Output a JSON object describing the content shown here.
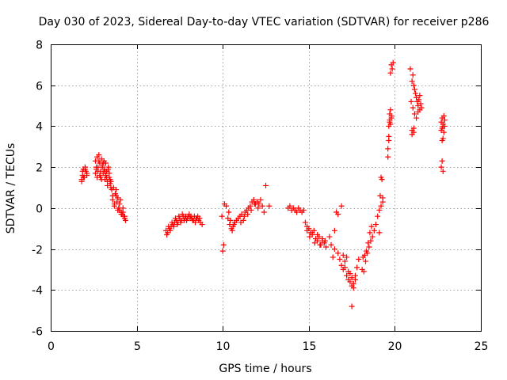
{
  "chart_data": {
    "type": "scatter",
    "title": "Day 030 of 2023, Sidereal Day-to-day VTEC variation (SDTVAR) for receiver p286",
    "xlabel": "GPS time / hours",
    "ylabel": "SDTVAR / TECUs",
    "xlim": [
      0,
      25
    ],
    "ylim": [
      -6,
      8
    ],
    "xticks": [
      0,
      5,
      10,
      15,
      20,
      25
    ],
    "yticks": [
      -6,
      -4,
      -2,
      0,
      2,
      4,
      6,
      8
    ],
    "grid": true,
    "marker": "+",
    "color": "#ff0000",
    "series": [
      {
        "name": "SDTVAR",
        "x": [
          1.8,
          1.85,
          1.9,
          1.95,
          2.0,
          2.05,
          2.1,
          1.8,
          1.85,
          1.9,
          2.0,
          2.1,
          2.6,
          2.65,
          2.7,
          2.75,
          2.8,
          2.85,
          2.9,
          2.95,
          3.0,
          3.05,
          3.1,
          3.15,
          3.2,
          3.25,
          3.3,
          3.35,
          3.4,
          3.45,
          3.5,
          2.6,
          2.7,
          2.8,
          2.9,
          3.0,
          3.1,
          3.2,
          3.3,
          3.4,
          3.5,
          2.65,
          2.75,
          2.85,
          2.95,
          3.05,
          3.15,
          3.25,
          3.35,
          3.45,
          3.55,
          3.6,
          3.65,
          3.7,
          3.75,
          3.8,
          3.85,
          3.9,
          3.95,
          4.0,
          4.05,
          4.1,
          4.15,
          4.2,
          4.25,
          4.3,
          4.35,
          3.6,
          3.7,
          3.8,
          3.9,
          4.0,
          4.1,
          4.2,
          4.3,
          6.7,
          6.8,
          6.9,
          7.0,
          7.1,
          7.2,
          7.3,
          7.4,
          7.5,
          7.6,
          7.7,
          7.8,
          7.9,
          8.0,
          8.1,
          8.2,
          8.3,
          8.4,
          8.5,
          8.6,
          8.7,
          8.8,
          6.75,
          6.85,
          6.95,
          7.05,
          7.15,
          7.25,
          7.35,
          7.45,
          7.55,
          7.65,
          7.75,
          7.85,
          7.95,
          8.05,
          8.15,
          8.25,
          8.35,
          8.45,
          8.55,
          8.65,
          9.95,
          10.0,
          10.05,
          10.1,
          10.2,
          10.3,
          10.4,
          10.5,
          10.6,
          10.7,
          10.8,
          10.9,
          11.0,
          11.1,
          11.2,
          11.3,
          11.4,
          11.5,
          11.6,
          11.7,
          11.8,
          11.9,
          12.0,
          12.1,
          12.2,
          12.3,
          12.4,
          12.5,
          12.7,
          10.35,
          10.45,
          10.55,
          10.65,
          11.05,
          11.25,
          11.45,
          11.65,
          11.85,
          12.05,
          13.8,
          13.9,
          14.0,
          14.1,
          14.2,
          14.3,
          14.4,
          14.5,
          14.6,
          14.7,
          14.8,
          14.9,
          15.0,
          15.1,
          15.2,
          15.3,
          15.4,
          15.5,
          15.6,
          15.7,
          15.8,
          15.9,
          16.0,
          14.9,
          15.05,
          15.2,
          15.35,
          15.5,
          15.65,
          15.8,
          15.95,
          16.2,
          16.3,
          16.4,
          16.5,
          16.6,
          16.7,
          16.8,
          16.9,
          17.0,
          17.1,
          17.2,
          17.3,
          17.4,
          17.5,
          17.6,
          17.7,
          17.8,
          17.9,
          16.5,
          16.7,
          16.9,
          17.0,
          17.1,
          17.2,
          17.3,
          17.4,
          17.5,
          17.6,
          17.7,
          17.5,
          18.1,
          18.2,
          18.3,
          18.4,
          18.5,
          18.6,
          18.7,
          18.8,
          18.9,
          19.0,
          19.1,
          19.2,
          19.3,
          18.15,
          18.25,
          18.35,
          18.45,
          18.55,
          18.65,
          19.1,
          19.15,
          19.2,
          19.25,
          19.3,
          19.6,
          19.65,
          19.7,
          19.75,
          19.8,
          19.85,
          19.9,
          19.6,
          19.65,
          19.7,
          19.75,
          19.8,
          19.65,
          19.7,
          19.75,
          19.8,
          20.9,
          21.0,
          21.05,
          21.1,
          21.15,
          21.2,
          21.25,
          21.3,
          21.35,
          21.4,
          21.45,
          21.5,
          21.55,
          20.95,
          21.05,
          21.15,
          21.25,
          21.35,
          21.45,
          21.0,
          21.1,
          21.0,
          21.1,
          22.7,
          22.75,
          22.8,
          22.85,
          22.9,
          22.7,
          22.75,
          22.8,
          22.85,
          22.9,
          22.75,
          22.8,
          22.7,
          22.75,
          22.8
        ],
        "y": [
          1.4,
          1.6,
          1.9,
          1.5,
          2.0,
          1.8,
          1.7,
          1.3,
          1.8,
          1.5,
          1.9,
          1.6,
          2.3,
          2.0,
          2.5,
          1.8,
          2.6,
          2.2,
          1.5,
          2.4,
          2.0,
          1.7,
          2.3,
          1.4,
          2.2,
          1.8,
          1.1,
          2.0,
          1.5,
          1.2,
          1.0,
          1.7,
          1.5,
          2.3,
          1.8,
          2.1,
          1.9,
          1.6,
          1.3,
          1.7,
          1.3,
          1.9,
          2.0,
          1.6,
          1.4,
          2.2,
          1.8,
          1.5,
          1.9,
          1.4,
          0.9,
          0.6,
          1.0,
          0.2,
          0.7,
          0.9,
          0.3,
          0.5,
          0.0,
          -0.1,
          0.4,
          -0.2,
          -0.3,
          0.0,
          -0.4,
          -0.5,
          -0.6,
          0.4,
          0.1,
          0.6,
          -0.1,
          0.2,
          -0.3,
          -0.2,
          -0.4,
          -1.1,
          -1.2,
          -1.0,
          -0.9,
          -0.8,
          -0.7,
          -0.6,
          -0.7,
          -0.5,
          -0.6,
          -0.4,
          -0.5,
          -0.6,
          -0.4,
          -0.5,
          -0.5,
          -0.6,
          -0.7,
          -0.5,
          -0.6,
          -0.7,
          -0.8,
          -1.3,
          -0.9,
          -1.1,
          -0.7,
          -0.9,
          -0.5,
          -0.8,
          -0.4,
          -0.7,
          -0.3,
          -0.6,
          -0.4,
          -0.5,
          -0.3,
          -0.4,
          -0.6,
          -0.4,
          -0.5,
          -0.4,
          -0.5,
          -0.4,
          -2.1,
          -1.8,
          0.2,
          0.1,
          -0.5,
          -0.8,
          -1.0,
          -0.9,
          -0.7,
          -0.6,
          -0.5,
          -0.4,
          -0.3,
          -0.6,
          -0.2,
          -0.1,
          0.0,
          0.1,
          0.3,
          0.4,
          0.2,
          0.3,
          0.2,
          0.4,
          0.1,
          -0.2,
          1.1,
          0.1,
          -0.2,
          -0.6,
          -1.1,
          -0.8,
          -0.7,
          -0.4,
          -0.3,
          -0.1,
          0.2,
          0.0,
          0.0,
          0.1,
          -0.1,
          0.0,
          -0.1,
          -0.2,
          0.0,
          -0.1,
          -0.2,
          -0.1,
          -0.7,
          -0.9,
          -1.0,
          -1.2,
          -1.3,
          -1.1,
          -1.5,
          -1.6,
          -1.4,
          -1.8,
          -1.6,
          -1.7,
          -1.9,
          -1.1,
          -1.4,
          -1.2,
          -1.7,
          -1.3,
          -1.8,
          -1.5,
          -1.6,
          -1.4,
          -1.8,
          -2.4,
          -1.1,
          -0.2,
          -2.2,
          -2.5,
          -2.8,
          -3.0,
          -2.9,
          -3.3,
          -3.5,
          -3.6,
          -3.8,
          -3.9,
          -3.3,
          -2.9,
          -2.5,
          -2.0,
          -0.3,
          0.1,
          -2.3,
          -2.6,
          -2.4,
          -3.1,
          -3.2,
          -3.4,
          -3.7,
          -3.5,
          -4.8,
          -3.0,
          -3.1,
          -2.6,
          -2.2,
          -1.9,
          -1.6,
          -1.4,
          -1.1,
          -0.8,
          -0.4,
          -0.1,
          0.1,
          0.5,
          -2.4,
          -2.3,
          -2.1,
          -1.7,
          -1.2,
          -0.9,
          -1.2,
          0.6,
          1.5,
          1.4,
          0.3,
          2.5,
          3.5,
          4.2,
          4.8,
          4.4,
          6.8,
          7.1,
          2.9,
          4.0,
          4.6,
          6.6,
          7.0,
          3.3,
          4.3,
          4.1,
          4.5,
          6.8,
          6.2,
          6.5,
          6.0,
          5.8,
          5.6,
          5.4,
          5.2,
          5.0,
          5.3,
          5.5,
          5.1,
          4.9,
          5.2,
          4.9,
          4.6,
          4.4,
          4.7,
          4.8,
          3.6,
          3.7,
          3.8,
          3.9,
          4.2,
          4.4,
          4.0,
          4.5,
          4.3,
          3.8,
          3.9,
          4.1,
          3.7,
          4.0,
          3.3,
          3.4,
          2.0,
          2.3,
          1.8
        ]
      }
    ]
  }
}
